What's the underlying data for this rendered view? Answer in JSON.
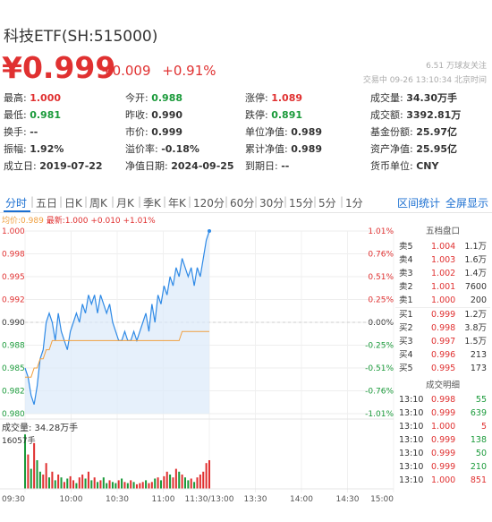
{
  "header": {
    "title": "科技ETF(SH:515000)",
    "price": "¥0.999",
    "change": "+0.009",
    "change_pct": "+0.91%",
    "watch_text": "6.51 万球友关注",
    "trade_status": "交易中 09-26 13:10:34 北京时间"
  },
  "stats": [
    [
      {
        "label": "最高:",
        "value": "1.000",
        "color": "red"
      },
      {
        "label": "今开:",
        "value": "0.988",
        "color": "green"
      },
      {
        "label": "涨停:",
        "value": "1.089",
        "color": "red"
      },
      {
        "label": "成交量:",
        "value": "34.30万手",
        "color": ""
      }
    ],
    [
      {
        "label": "最低:",
        "value": "0.981",
        "color": "green"
      },
      {
        "label": "昨收:",
        "value": "0.990",
        "color": ""
      },
      {
        "label": "跌停:",
        "value": "0.891",
        "color": "green"
      },
      {
        "label": "成交额:",
        "value": "3392.81万",
        "color": ""
      }
    ],
    [
      {
        "label": "换手:",
        "value": "--",
        "color": ""
      },
      {
        "label": "市价:",
        "value": "0.999",
        "color": ""
      },
      {
        "label": "单位净值:",
        "value": "0.989",
        "color": ""
      },
      {
        "label": "基金份额:",
        "value": "25.97亿",
        "color": ""
      }
    ],
    [
      {
        "label": "振幅:",
        "value": "1.92%",
        "color": ""
      },
      {
        "label": "溢价率:",
        "value": "-0.18%",
        "color": ""
      },
      {
        "label": "累计净值:",
        "value": "0.989",
        "color": ""
      },
      {
        "label": "资产净值:",
        "value": "25.95亿",
        "color": ""
      }
    ],
    [
      {
        "label": "成立日:",
        "value": "2019-07-22",
        "color": ""
      },
      {
        "label": "净值日期:",
        "value": "2024-09-25",
        "color": ""
      },
      {
        "label": "到期日:",
        "value": "--",
        "color": ""
      },
      {
        "label": "货币单位:",
        "value": "CNY",
        "color": ""
      }
    ]
  ],
  "tabs": [
    "分时",
    "五日",
    "日K",
    "周K",
    "月K",
    "季K",
    "年K",
    "120分",
    "60分",
    "30分",
    "15分",
    "5分",
    "1分"
  ],
  "tab_links": [
    "区间统计",
    "全屏显示"
  ],
  "ma_line": {
    "avg": "均价:0.989",
    "latest": "最新:1.000 +0.010 +1.01%"
  },
  "chart_data": {
    "type": "line",
    "title": "",
    "y_ticks_left": [
      "1.000",
      "0.998",
      "0.995",
      "0.992",
      "0.990",
      "0.988",
      "0.985",
      "0.982",
      "0.980"
    ],
    "y_ticks_right": [
      "1.01%",
      "0.76%",
      "0.51%",
      "0.25%",
      "0.00%",
      "-0.25%",
      "-0.51%",
      "-0.76%",
      "-1.01%"
    ],
    "x_ticks": [
      "09:30",
      "10:00",
      "10:30",
      "11:00",
      "11:30/13:00",
      "13:30",
      "14:00",
      "14:30",
      "15:00"
    ],
    "ylim": [
      0.98,
      1.0
    ],
    "prev_close": 0.99,
    "series": [
      {
        "name": "最新",
        "color": "#2f8ae6",
        "values": [
          0.985,
          0.984,
          0.982,
          0.981,
          0.983,
          0.986,
          0.987,
          0.99,
          0.991,
          0.99,
          0.988,
          0.991,
          0.989,
          0.988,
          0.987,
          0.989,
          0.99,
          0.991,
          0.99,
          0.992,
          0.991,
          0.993,
          0.992,
          0.993,
          0.991,
          0.993,
          0.992,
          0.991,
          0.992,
          0.99,
          0.989,
          0.988,
          0.988,
          0.989,
          0.988,
          0.988,
          0.989,
          0.988,
          0.989,
          0.99,
          0.991,
          0.989,
          0.992,
          0.99,
          0.993,
          0.992,
          0.994,
          0.993,
          0.995,
          0.994,
          0.996,
          0.995,
          0.997,
          0.996,
          0.995,
          0.996,
          0.994,
          0.996,
          0.995,
          0.997,
          0.999,
          1.0
        ]
      },
      {
        "name": "均价",
        "color": "#f0a040",
        "values": [
          0.984,
          0.984,
          0.984,
          0.985,
          0.985,
          0.986,
          0.986,
          0.987,
          0.987,
          0.988,
          0.988,
          0.988,
          0.988,
          0.988,
          0.988,
          0.988,
          0.988,
          0.988,
          0.988,
          0.988,
          0.988,
          0.988,
          0.988,
          0.988,
          0.988,
          0.988,
          0.988,
          0.988,
          0.988,
          0.988,
          0.988,
          0.988,
          0.988,
          0.988,
          0.988,
          0.988,
          0.988,
          0.988,
          0.988,
          0.988,
          0.988,
          0.988,
          0.988,
          0.988,
          0.988,
          0.988,
          0.988,
          0.988,
          0.988,
          0.988,
          0.988,
          0.988,
          0.989,
          0.989,
          0.989,
          0.989,
          0.989,
          0.989,
          0.989,
          0.989,
          0.989,
          0.989
        ]
      }
    ],
    "volume_label": "成交量: 34.28万手",
    "volume_max": "16057手",
    "volume_bars": [
      0.95,
      0.6,
      0.35,
      0.8,
      0.5,
      0.3,
      0.25,
      0.45,
      0.2,
      0.3,
      0.15,
      0.25,
      0.2,
      0.12,
      0.18,
      0.22,
      0.15,
      0.1,
      0.2,
      0.25,
      0.18,
      0.3,
      0.15,
      0.2,
      0.12,
      0.15,
      0.2,
      0.1,
      0.15,
      0.12,
      0.1,
      0.15,
      0.18,
      0.12,
      0.1,
      0.15,
      0.12,
      0.08,
      0.1,
      0.12,
      0.15,
      0.1,
      0.12,
      0.18,
      0.2,
      0.15,
      0.22,
      0.3,
      0.25,
      0.2,
      0.35,
      0.3,
      0.25,
      0.2,
      0.15,
      0.18,
      0.12,
      0.2,
      0.25,
      0.3,
      0.45,
      0.5
    ],
    "volume_colors": [
      "green",
      "red",
      "green",
      "red",
      "green",
      "green",
      "red",
      "red",
      "green",
      "red",
      "green",
      "red",
      "green",
      "red",
      "green",
      "red",
      "red",
      "green",
      "red",
      "red",
      "green",
      "red",
      "green",
      "red",
      "green",
      "red",
      "green",
      "green",
      "red",
      "green",
      "green",
      "red",
      "green",
      "red",
      "green",
      "red",
      "green",
      "red",
      "red",
      "red",
      "green",
      "red",
      "red",
      "green",
      "red",
      "green",
      "red",
      "red",
      "green",
      "red",
      "red",
      "green",
      "red",
      "green",
      "green",
      "red",
      "green",
      "red",
      "red",
      "red",
      "red",
      "red"
    ]
  },
  "depth": {
    "title": "五档盘口",
    "asks": [
      {
        "label": "卖5",
        "price": "1.004",
        "vol": "1.1万"
      },
      {
        "label": "卖4",
        "price": "1.003",
        "vol": "1.6万"
      },
      {
        "label": "卖3",
        "price": "1.002",
        "vol": "1.4万"
      },
      {
        "label": "卖2",
        "price": "1.001",
        "vol": "7600"
      },
      {
        "label": "卖1",
        "price": "1.000",
        "vol": "200"
      }
    ],
    "bids": [
      {
        "label": "买1",
        "price": "0.999",
        "vol": "1.2万"
      },
      {
        "label": "买2",
        "price": "0.998",
        "vol": "3.8万"
      },
      {
        "label": "买3",
        "price": "0.997",
        "vol": "1.5万"
      },
      {
        "label": "买4",
        "price": "0.996",
        "vol": "213"
      },
      {
        "label": "买5",
        "price": "0.995",
        "vol": "173"
      }
    ]
  },
  "trades": {
    "title": "成交明细",
    "rows": [
      {
        "time": "13:10",
        "price": "0.998",
        "vol": "55"
      },
      {
        "time": "13:10",
        "price": "0.999",
        "vol": "639"
      },
      {
        "time": "13:10",
        "price": "1.000",
        "vol": "5"
      },
      {
        "time": "13:10",
        "price": "0.999",
        "vol": "138"
      },
      {
        "time": "13:10",
        "price": "0.999",
        "vol": "50"
      },
      {
        "time": "13:10",
        "price": "0.999",
        "vol": "210"
      },
      {
        "time": "13:10",
        "price": "1.000",
        "vol": "851"
      }
    ]
  },
  "colors": {
    "up": "#e03131",
    "down": "#1a9a3a",
    "accent": "#1b6fd1",
    "line": "#2f8ae6",
    "avg": "#f0a040"
  }
}
